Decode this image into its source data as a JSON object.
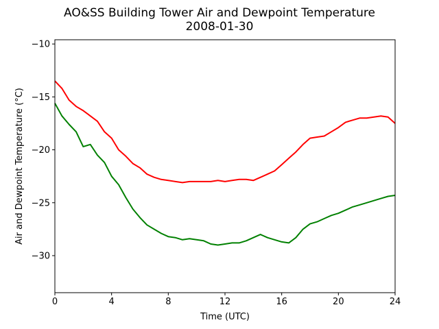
{
  "chart_data": {
    "type": "line",
    "title": "AO&SS Building Tower Air and Dewpoint Temperature",
    "subtitle": "2008-01-30",
    "xlabel": "Time (UTC)",
    "ylabel": "Air and Dewpoint Temperature (°C)",
    "xlim": [
      0,
      24
    ],
    "ylim": [
      -33.5,
      -9.6
    ],
    "xticks": [
      0,
      4,
      8,
      12,
      16,
      20,
      24
    ],
    "yticks": [
      -30,
      -25,
      -20,
      -15,
      -10
    ],
    "grid": false,
    "series": [
      {
        "color": "#ff0000",
        "x": [
          0,
          0.5,
          1,
          1.5,
          2,
          2.5,
          3,
          3.5,
          4,
          4.5,
          5,
          5.5,
          6,
          6.5,
          7,
          7.5,
          8,
          8.5,
          9,
          9.5,
          10,
          10.5,
          11,
          11.5,
          12,
          12.5,
          13,
          13.5,
          14,
          14.5,
          15,
          15.5,
          16,
          16.5,
          17,
          17.5,
          18,
          18.5,
          19,
          19.5,
          20,
          20.5,
          21,
          21.5,
          22,
          22.5,
          23,
          23.5,
          24
        ],
        "values": [
          -13.5,
          -14.2,
          -15.3,
          -15.9,
          -16.3,
          -16.8,
          -17.3,
          -18.3,
          -18.9,
          -20.0,
          -20.6,
          -21.3,
          -21.7,
          -22.3,
          -22.6,
          -22.8,
          -22.9,
          -23.0,
          -23.1,
          -23.0,
          -23.0,
          -23.0,
          -23.0,
          -22.9,
          -23.0,
          -22.9,
          -22.8,
          -22.8,
          -22.9,
          -22.6,
          -22.3,
          -22.0,
          -21.4,
          -20.8,
          -20.2,
          -19.5,
          -18.9,
          -18.8,
          -18.7,
          -18.3,
          -17.9,
          -17.4,
          -17.2,
          -17.0,
          -17.0,
          -16.9,
          -16.8,
          -16.9,
          -17.5
        ]
      },
      {
        "color": "#008000",
        "x": [
          0,
          0.5,
          1,
          1.5,
          2,
          2.5,
          3,
          3.5,
          4,
          4.5,
          5,
          5.5,
          6,
          6.5,
          7,
          7.5,
          8,
          8.5,
          9,
          9.5,
          10,
          10.5,
          11,
          11.5,
          12,
          12.5,
          13,
          13.5,
          14,
          14.5,
          15,
          15.5,
          16,
          16.5,
          17,
          17.5,
          18,
          18.5,
          19,
          19.5,
          20,
          20.5,
          21,
          21.5,
          22,
          22.5,
          23,
          23.5,
          24
        ],
        "values": [
          -15.6,
          -16.8,
          -17.6,
          -18.3,
          -19.7,
          -19.5,
          -20.5,
          -21.2,
          -22.5,
          -23.3,
          -24.5,
          -25.6,
          -26.4,
          -27.1,
          -27.5,
          -27.9,
          -28.2,
          -28.3,
          -28.5,
          -28.4,
          -28.5,
          -28.6,
          -28.9,
          -29.0,
          -28.9,
          -28.8,
          -28.8,
          -28.6,
          -28.3,
          -28.0,
          -28.3,
          -28.5,
          -28.7,
          -28.8,
          -28.3,
          -27.5,
          -27.0,
          -26.8,
          -26.5,
          -26.2,
          -26.0,
          -25.7,
          -25.4,
          -25.2,
          -25.0,
          -24.8,
          -24.6,
          -24.4,
          -24.3
        ]
      }
    ]
  }
}
